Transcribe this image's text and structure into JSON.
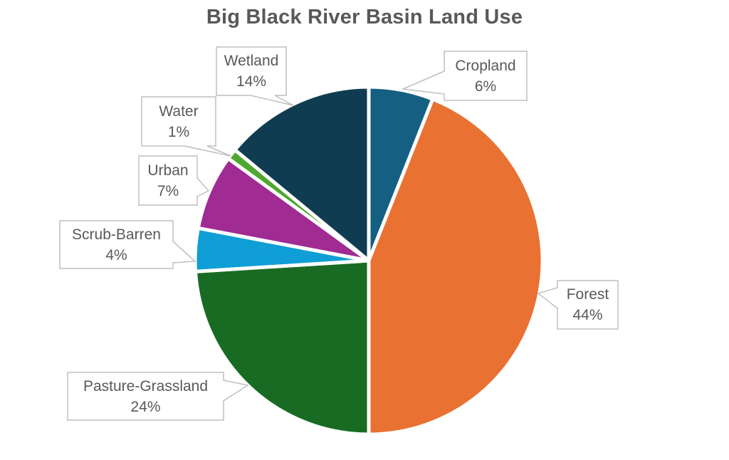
{
  "chart_data": {
    "type": "pie",
    "title": "Big Black River Basin Land Use",
    "categories": [
      "Cropland",
      "Forest",
      "Pasture-Grassland",
      "Scrub-Barren",
      "Urban",
      "Water",
      "Wetland"
    ],
    "values": [
      6,
      44,
      24,
      4,
      7,
      1,
      14
    ],
    "unit": "percent",
    "legend": "none",
    "label_style": "callout-boxes-with-leader-wedges",
    "start_angle_deg": 0,
    "direction": "clockwise",
    "background_color": "#FFFFFF",
    "title_color": "#595959",
    "label_text_color": "#595959",
    "callout_border_color": "#BFBFBF",
    "slice_gap_color": "#FFFFFF",
    "slices": [
      {
        "name": "Cropland",
        "value": 6,
        "pct_label": "6%",
        "color": "#156082"
      },
      {
        "name": "Forest",
        "value": 44,
        "pct_label": "44%",
        "color": "#E97132"
      },
      {
        "name": "Pasture-Grassland",
        "value": 24,
        "pct_label": "24%",
        "color": "#196B24"
      },
      {
        "name": "Scrub-Barren",
        "value": 4,
        "pct_label": "4%",
        "color": "#0F9ED5"
      },
      {
        "name": "Urban",
        "value": 7,
        "pct_label": "7%",
        "color": "#A02B93"
      },
      {
        "name": "Water",
        "value": 1,
        "pct_label": "1%",
        "color": "#4EA72E"
      },
      {
        "name": "Wetland",
        "value": 14,
        "pct_label": "14%",
        "color": "#0F3C50"
      }
    ]
  }
}
